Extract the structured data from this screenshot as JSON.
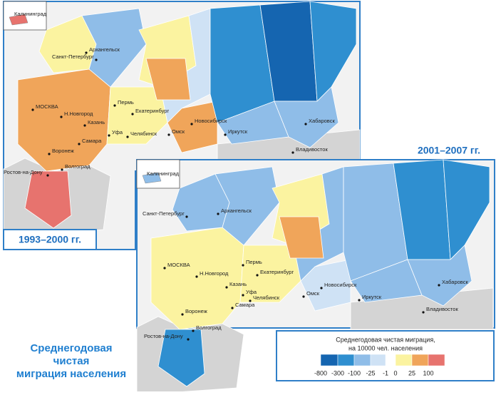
{
  "panels": [
    {
      "period": "1993–2000 гг.",
      "cities": [
        "Калининград",
        "Архангельск",
        "Санкт-Петербург",
        "МОСКВА",
        "Н.Новгород",
        "Пермь",
        "Екатеринбург",
        "Казань",
        "Уфа",
        "Челябинск",
        "Омск",
        "Новосибирск",
        "Самара",
        "Воронеж",
        "Волгоград",
        "Ростов-на-Дону",
        "Иркутск",
        "Хабаровск",
        "Владивосток"
      ]
    },
    {
      "period": "2001–2007 гг.",
      "cities": [
        "Калининград",
        "Архангельск",
        "Санкт-Петербург",
        "МОСКВА",
        "Н.Новгород",
        "Пермь",
        "Екатеринбург",
        "Казань",
        "Уфа",
        "Челябинск",
        "Омск",
        "Новосибирск",
        "Самара",
        "Воронеж",
        "Волгоград",
        "Ростов-на-Дону",
        "Иркутск",
        "Хабаровск",
        "Владивосток"
      ]
    }
  ],
  "legend": {
    "title": [
      "Среднегодовая чистая миграция,",
      "на 10000 чел. населения"
    ],
    "ticks": [
      -800,
      -300,
      -100,
      -25,
      -1,
      0,
      25,
      100
    ],
    "colors": [
      "#1565b0",
      "#2f8fd0",
      "#8fbde8",
      "#cfe2f5",
      "#fbf3a0",
      "#f0a55a",
      "#e7736e"
    ]
  },
  "caption": [
    "Среднегодовая",
    "чистая",
    "миграция населения"
  ]
}
